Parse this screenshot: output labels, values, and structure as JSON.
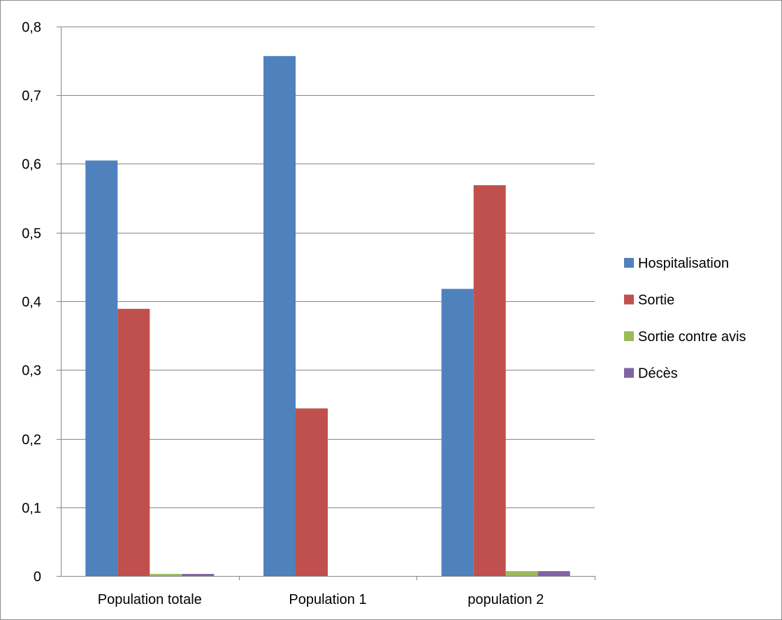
{
  "chart_data": {
    "type": "bar",
    "title": "",
    "xlabel": "",
    "ylabel": "",
    "ylim": [
      0,
      0.8
    ],
    "ytick_step": 0.1,
    "y_tick_labels": [
      "0",
      "0,1",
      "0,2",
      "0,3",
      "0,4",
      "0,5",
      "0,6",
      "0,7",
      "0,8"
    ],
    "grid": "horizontal",
    "legend_position": "right",
    "categories": [
      "Population totale",
      "Population 1",
      "population 2"
    ],
    "series": [
      {
        "name": "Hospitalisation",
        "color": "#4f81bd",
        "values": [
          0.605,
          0.757,
          0.418
        ]
      },
      {
        "name": "Sortie",
        "color": "#c0504d",
        "values": [
          0.389,
          0.244,
          0.569
        ]
      },
      {
        "name": "Sortie contre avis",
        "color": "#9bbb59",
        "values": [
          0.003,
          0,
          0.007
        ]
      },
      {
        "name": "Décès",
        "color": "#8064a2",
        "values": [
          0.003,
          0,
          0.007
        ]
      }
    ]
  }
}
